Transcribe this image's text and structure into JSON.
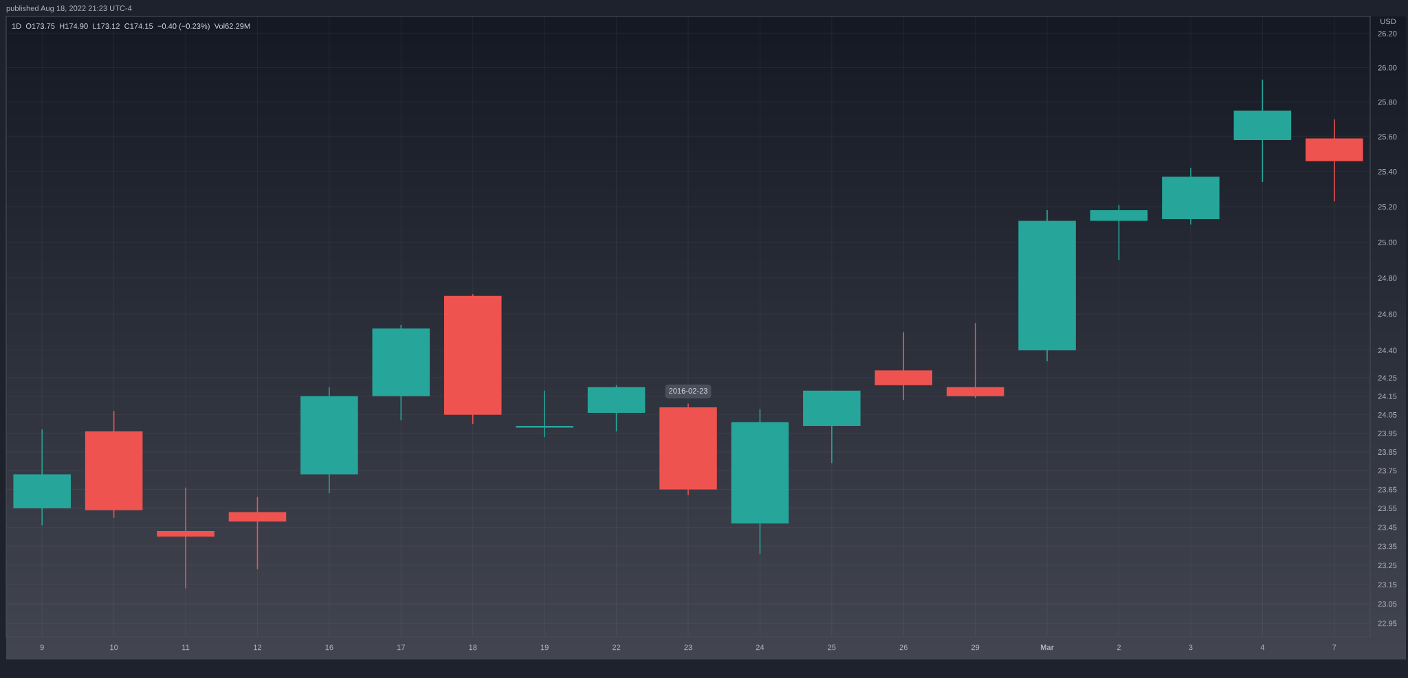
{
  "chart_data": {
    "type": "candlestick",
    "title": "1D  O173.75  H174.90  L173.12  C174.15  −0.40 (−0.23%)  Vol62.29M",
    "ylabel": "USD",
    "categories": [
      "9",
      "10",
      "11",
      "12",
      "16",
      "17",
      "18",
      "19",
      "22",
      "23",
      "24",
      "25",
      "26",
      "29",
      "Mar",
      "2",
      "3",
      "4",
      "7"
    ],
    "ohlc": [
      [
        23.55,
        23.97,
        23.46,
        23.73
      ],
      [
        23.96,
        24.07,
        23.5,
        23.54
      ],
      [
        23.43,
        23.66,
        23.13,
        23.4
      ],
      [
        23.53,
        23.61,
        23.23,
        23.48
      ],
      [
        23.73,
        24.2,
        23.63,
        24.15
      ],
      [
        24.15,
        24.54,
        24.02,
        24.52
      ],
      [
        24.7,
        24.71,
        24.0,
        24.05
      ],
      [
        23.98,
        24.18,
        23.93,
        23.99
      ],
      [
        24.06,
        24.21,
        23.96,
        24.2
      ],
      [
        24.09,
        24.11,
        23.62,
        23.65
      ],
      [
        23.47,
        24.08,
        23.31,
        24.01
      ],
      [
        23.99,
        24.18,
        23.79,
        24.18
      ],
      [
        24.29,
        24.5,
        24.13,
        24.21
      ],
      [
        24.2,
        24.55,
        24.14,
        24.15
      ],
      [
        24.4,
        25.18,
        24.34,
        25.12
      ],
      [
        25.12,
        25.21,
        24.9,
        25.18
      ],
      [
        25.13,
        25.42,
        25.1,
        25.37
      ],
      [
        25.58,
        25.93,
        25.34,
        25.75
      ],
      [
        25.59,
        25.7,
        25.23,
        25.46
      ]
    ],
    "colors": [
      "#26a69a",
      "#ef5350",
      "#ef5350",
      "#ef5350",
      "#26a69a",
      "#26a69a",
      "#ef5350",
      "#26a69a",
      "#26a69a",
      "#ef5350",
      "#26a69a",
      "#26a69a",
      "#ef5350",
      "#ef5350",
      "#26a69a",
      "#26a69a",
      "#26a69a",
      "#26a69a",
      "#ef5350"
    ],
    "log": true,
    "ylim": [
      22.88,
      26.3
    ],
    "yticks": [
      {
        "value": 26.2,
        "label": "26.20"
      },
      {
        "value": 26.0,
        "label": "26.00"
      },
      {
        "value": 25.8,
        "label": "25.80"
      },
      {
        "value": 25.6,
        "label": "25.60"
      },
      {
        "value": 25.4,
        "label": "25.40"
      },
      {
        "value": 25.2,
        "label": "25.20"
      },
      {
        "value": 25.0,
        "label": "25.00"
      },
      {
        "value": 24.8,
        "label": "24.80"
      },
      {
        "value": 24.6,
        "label": "24.60"
      },
      {
        "value": 24.4,
        "label": "24.40"
      },
      24.25,
      24.15,
      24.05,
      23.95,
      23.85,
      23.75,
      23.65,
      23.55,
      23.45,
      23.35,
      23.25,
      23.15,
      23.05,
      22.95
    ],
    "grid": true,
    "annotations": [
      "published Aug 18, 2022 21:23 UTC-4",
      {
        "text": "2016-02-23",
        "x": "23",
        "y": 24.11
      }
    ]
  }
}
